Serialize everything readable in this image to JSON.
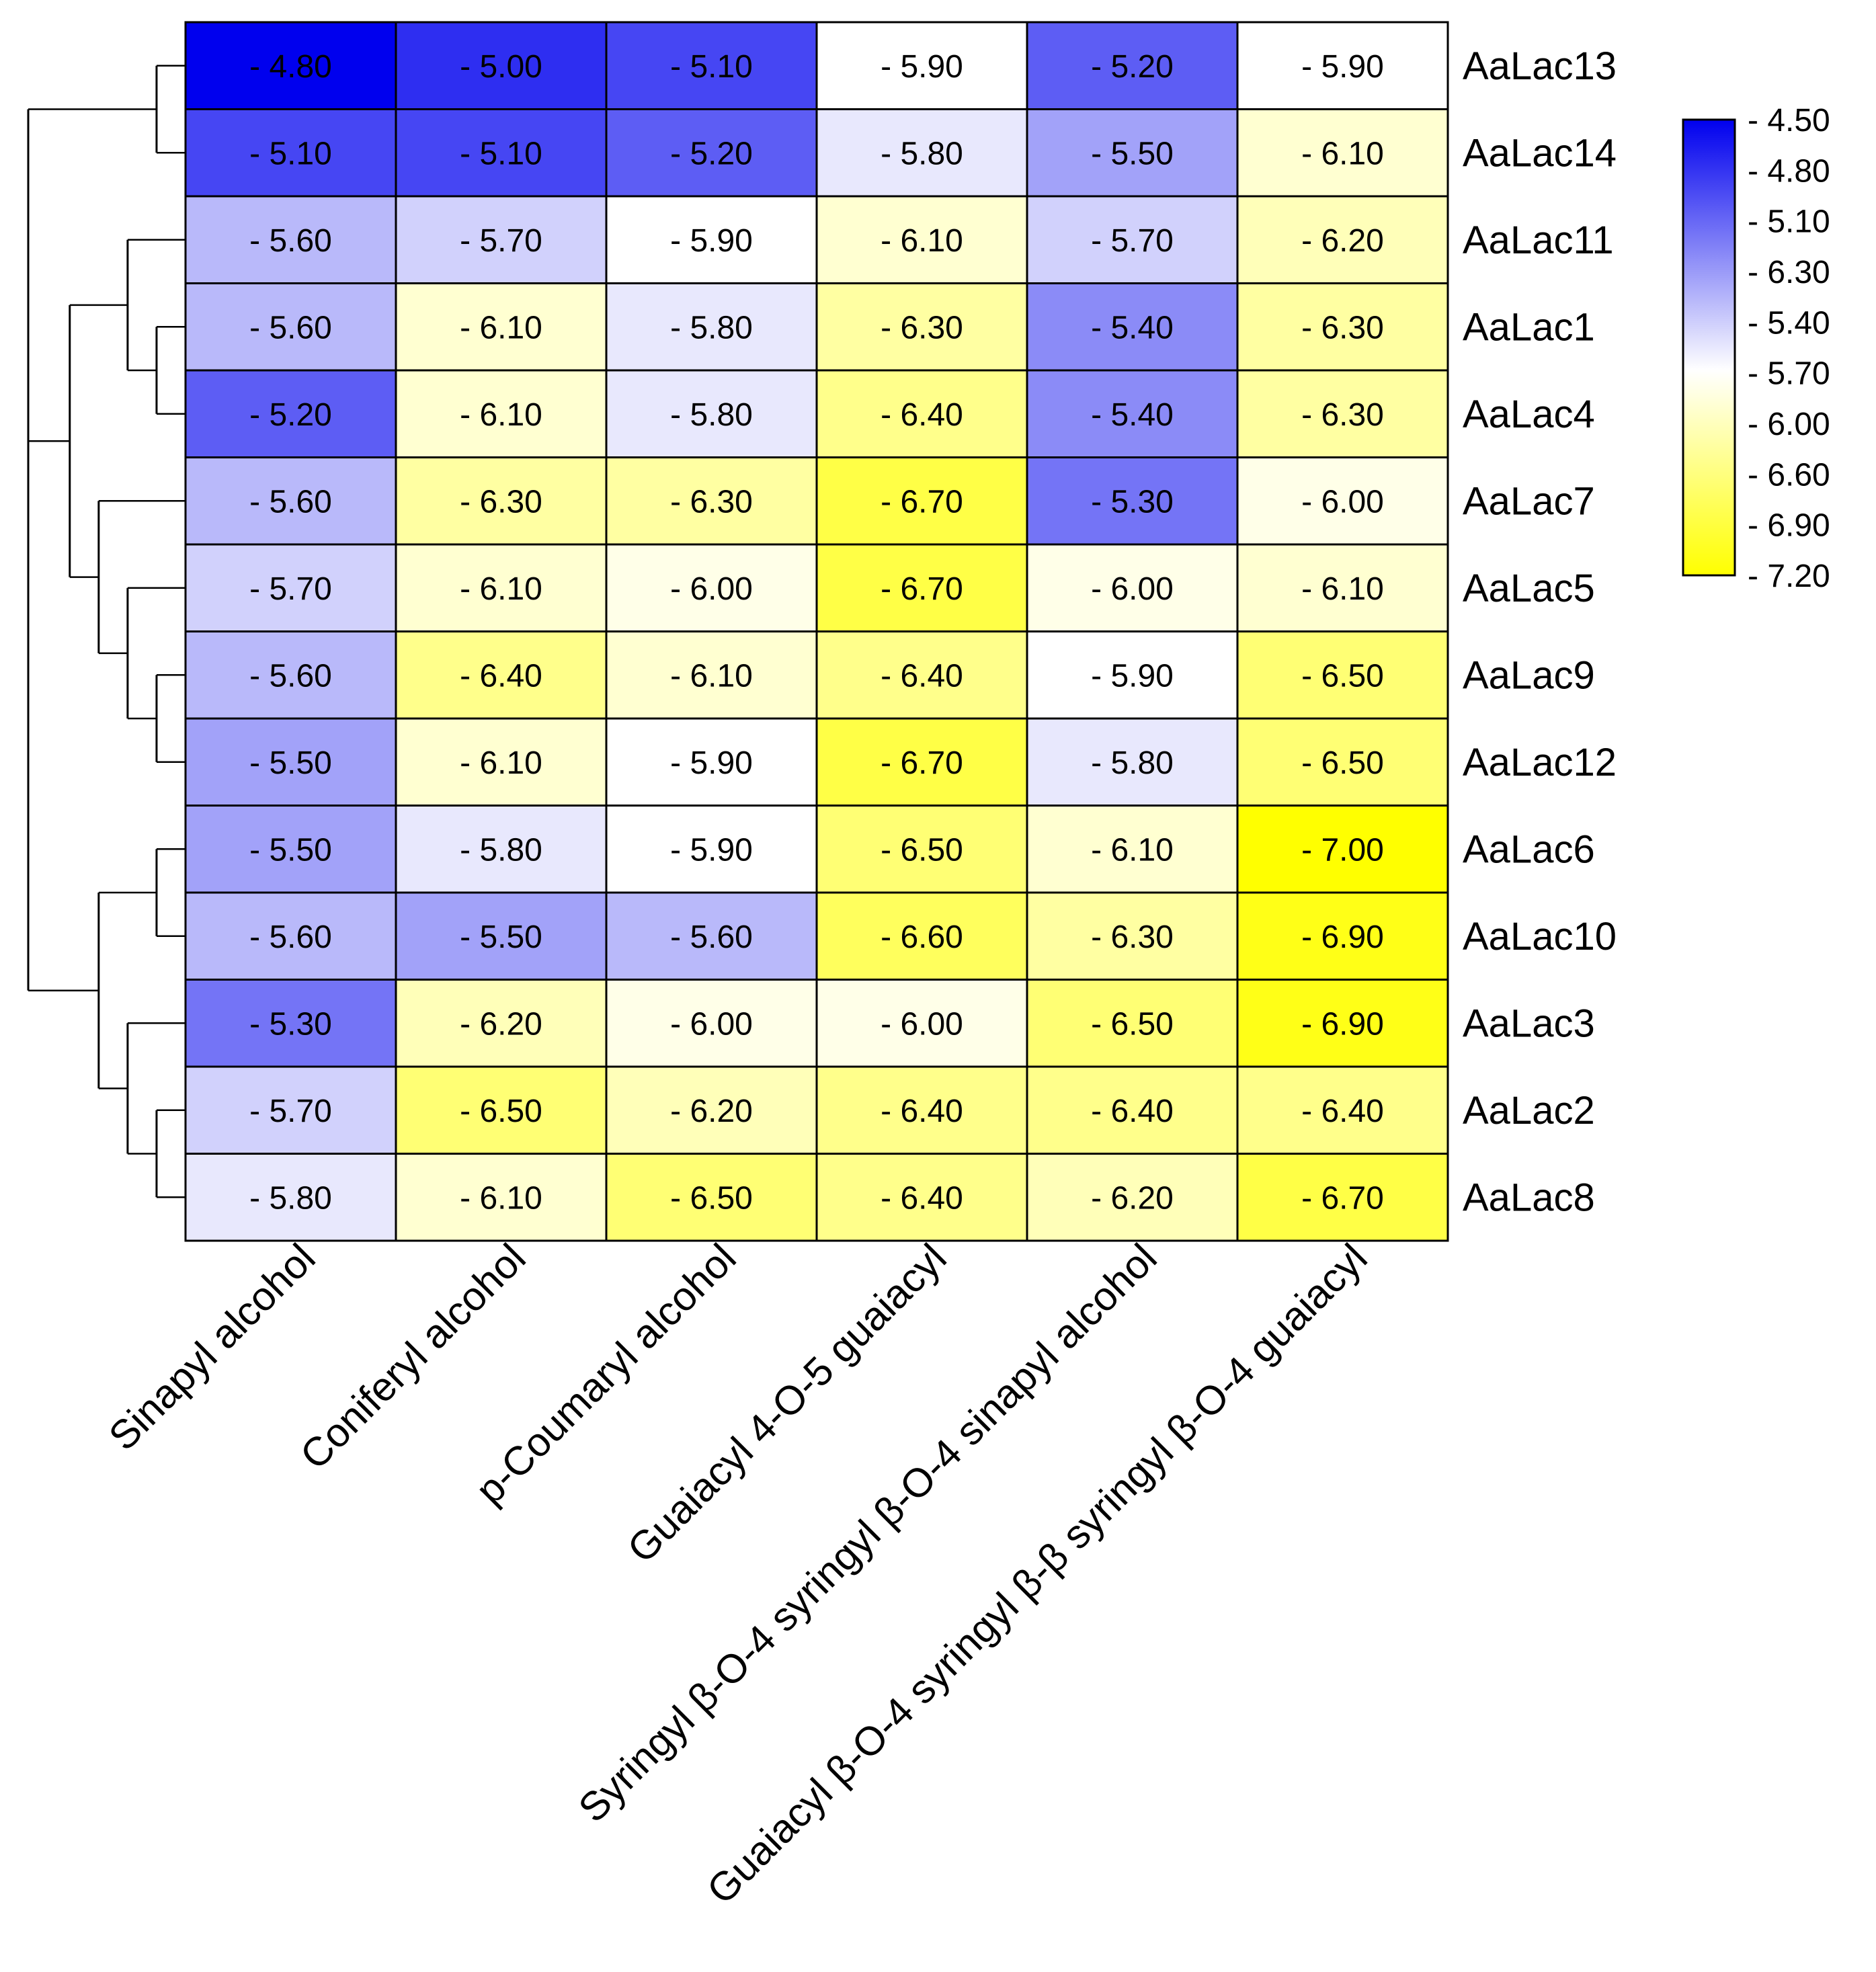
{
  "chart_data": {
    "type": "heatmap",
    "title": "",
    "xlabel": "",
    "ylabel": "",
    "columns": [
      "Sinapyl alcohol",
      "Coniferyl alcohol",
      "p-Coumaryl alcohol",
      "Guaiacyl 4-O-5 guaiacyl",
      "Syringyl β-O-4 syringyl β-O-4 sinapyl alcohol",
      "Guaiacyl β-O-4 syringyl β-β syringyl β-O-4 guaiacyl"
    ],
    "rows": [
      "AaLac13",
      "AaLac14",
      "AaLac11",
      "AaLac1",
      "AaLac4",
      "AaLac7",
      "AaLac5",
      "AaLac9",
      "AaLac12",
      "AaLac6",
      "AaLac10",
      "AaLac3",
      "AaLac2",
      "AaLac8"
    ],
    "values": [
      [
        -4.8,
        -5.0,
        -5.1,
        -5.9,
        -5.2,
        -5.9
      ],
      [
        -5.1,
        -5.1,
        -5.2,
        -5.8,
        -5.5,
        -6.1
      ],
      [
        -5.6,
        -5.7,
        -5.9,
        -6.1,
        -5.7,
        -6.2
      ],
      [
        -5.6,
        -6.1,
        -5.8,
        -6.3,
        -5.4,
        -6.3
      ],
      [
        -5.2,
        -6.1,
        -5.8,
        -6.4,
        -5.4,
        -6.3
      ],
      [
        -5.6,
        -6.3,
        -6.3,
        -6.7,
        -5.3,
        -6.0
      ],
      [
        -5.7,
        -6.1,
        -6.0,
        -6.7,
        -6.0,
        -6.1
      ],
      [
        -5.6,
        -6.4,
        -6.1,
        -6.4,
        -5.9,
        -6.5
      ],
      [
        -5.5,
        -6.1,
        -5.9,
        -6.7,
        -5.8,
        -6.5
      ],
      [
        -5.5,
        -5.8,
        -5.9,
        -6.5,
        -6.1,
        -7.0
      ],
      [
        -5.6,
        -5.5,
        -5.6,
        -6.6,
        -6.3,
        -6.9
      ],
      [
        -5.3,
        -6.2,
        -6.0,
        -6.0,
        -6.5,
        -6.9
      ],
      [
        -5.7,
        -6.5,
        -6.2,
        -6.4,
        -6.4,
        -6.4
      ],
      [
        -5.8,
        -6.1,
        -6.5,
        -6.4,
        -6.2,
        -6.7
      ]
    ],
    "cell_labels": [
      [
        "- 4.80",
        "- 5.00",
        "- 5.10",
        "- 5.90",
        "- 5.20",
        "- 5.90"
      ],
      [
        "- 5.10",
        "- 5.10",
        "- 5.20",
        "- 5.80",
        "- 5.50",
        "- 6.10"
      ],
      [
        "- 5.60",
        "- 5.70",
        "- 5.90",
        "- 6.10",
        "- 5.70",
        "- 6.20"
      ],
      [
        "- 5.60",
        "- 6.10",
        "- 5.80",
        "- 6.30",
        "- 5.40",
        "- 6.30"
      ],
      [
        "- 5.20",
        "- 6.10",
        "- 5.80",
        "- 6.40",
        "- 5.40",
        "- 6.30"
      ],
      [
        "- 5.60",
        "- 6.30",
        "- 6.30",
        "- 6.70",
        "- 5.30",
        "- 6.00"
      ],
      [
        "- 5.70",
        "- 6.10",
        "- 6.00",
        "- 6.70",
        "- 6.00",
        "- 6.10"
      ],
      [
        "- 5.60",
        "- 6.40",
        "- 6.10",
        "- 6.40",
        "- 5.90",
        "- 6.50"
      ],
      [
        "- 5.50",
        "- 6.10",
        "- 5.90",
        "- 6.70",
        "- 5.80",
        "- 6.50"
      ],
      [
        "- 5.50",
        "- 5.80",
        "- 5.90",
        "- 6.50",
        "- 6.10",
        "- 7.00"
      ],
      [
        "- 5.60",
        "- 5.50",
        "- 5.60",
        "- 6.60",
        "- 6.30",
        "- 6.90"
      ],
      [
        "- 5.30",
        "- 6.20",
        "- 6.00",
        "- 6.00",
        "- 6.50",
        "- 6.90"
      ],
      [
        "- 5.70",
        "- 6.50",
        "- 6.20",
        "- 6.40",
        "- 6.40",
        "- 6.40"
      ],
      [
        "- 5.80",
        "- 6.10",
        "- 6.50",
        "- 6.40",
        "- 6.20",
        "- 6.70"
      ]
    ],
    "color_scale": {
      "min_value": -4.8,
      "mid_value": -5.9,
      "max_value": -7.0,
      "min_color": "#0000ee",
      "mid_color": "#ffffff",
      "max_color": "#ffff00",
      "border_color": "#000000"
    },
    "legend": {
      "position": "right",
      "ticks": [
        "- 4.50",
        "- 4.80",
        "- 5.10",
        "- 6.30",
        "- 5.40",
        "- 5.70",
        "- 6.00",
        "- 6.60",
        "- 6.90",
        "- 7.20"
      ]
    },
    "dendrogram": {
      "side": "left",
      "groups": [
        [
          "AaLac13",
          "AaLac14"
        ],
        [
          [
            "AaLac11",
            [
              "AaLac1",
              "AaLac4"
            ]
          ],
          [
            "AaLac7",
            [
              "AaLac5",
              [
                "AaLac9",
                "AaLac12"
              ]
            ]
          ]
        ],
        [
          [
            "AaLac6",
            "AaLac10"
          ],
          [
            "AaLac3",
            [
              "AaLac2",
              "AaLac8"
            ]
          ]
        ]
      ]
    }
  }
}
